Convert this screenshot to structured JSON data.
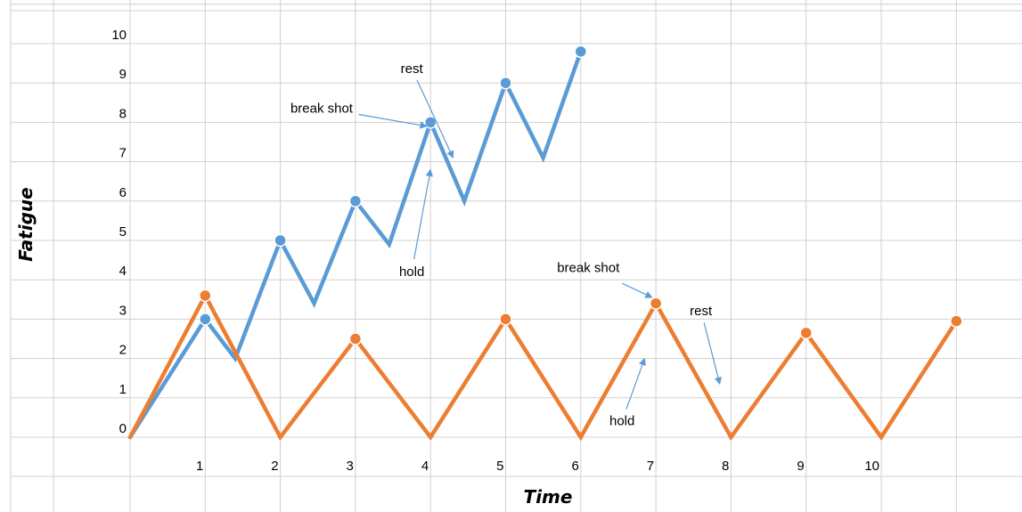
{
  "chart_data": {
    "type": "line",
    "title": "",
    "xlabel": "Time",
    "ylabel": "Fatigue",
    "x_ticks": [
      "1",
      "2",
      "3",
      "4",
      "5",
      "6",
      "7",
      "8",
      "9",
      "10"
    ],
    "y_ticks": [
      "0",
      "1",
      "2",
      "3",
      "4",
      "5",
      "6",
      "7",
      "8",
      "9",
      "10"
    ],
    "xlim": [
      0,
      11
    ],
    "ylim": [
      0,
      10
    ],
    "grid": true,
    "legend": "none",
    "colors": {
      "series_blue": "#5B9BD5",
      "series_orange": "#ED7D31",
      "grid": "#d0d0d0",
      "arrow": "#5B9BD5"
    },
    "series": [
      {
        "points": [
          {
            "x": 0,
            "y": 0
          },
          {
            "x": 1,
            "y": 3.0
          },
          {
            "x": 1.4,
            "y": 2.0
          },
          {
            "x": 2,
            "y": 5.0
          },
          {
            "x": 2.45,
            "y": 3.4
          },
          {
            "x": 3,
            "y": 6.0
          },
          {
            "x": 3.45,
            "y": 4.9
          },
          {
            "x": 4,
            "y": 8.0
          },
          {
            "x": 4.45,
            "y": 6.0
          },
          {
            "x": 5,
            "y": 9.0
          },
          {
            "x": 5.5,
            "y": 7.1
          },
          {
            "x": 6,
            "y": 9.8
          }
        ],
        "markers": [
          1,
          3,
          5,
          7,
          9,
          11
        ]
      },
      {
        "points": [
          {
            "x": 0,
            "y": 0
          },
          {
            "x": 1,
            "y": 3.6
          },
          {
            "x": 2,
            "y": 0
          },
          {
            "x": 3,
            "y": 2.5
          },
          {
            "x": 4,
            "y": 0
          },
          {
            "x": 5,
            "y": 3.0
          },
          {
            "x": 6,
            "y": 0
          },
          {
            "x": 7,
            "y": 3.4
          },
          {
            "x": 8,
            "y": 0
          },
          {
            "x": 9,
            "y": 2.65
          },
          {
            "x": 10,
            "y": 0
          },
          {
            "x": 11,
            "y": 2.95
          }
        ],
        "markers": [
          1,
          3,
          5,
          7,
          9,
          11
        ]
      }
    ],
    "annotations": [
      {
        "text": "rest",
        "x": 3.75,
        "y": 9.25,
        "arrow_to": {
          "x": 4.3,
          "y": 7.1
        }
      },
      {
        "text": "break shot",
        "x": 2.55,
        "y": 8.25,
        "arrow_to": {
          "x": 3.95,
          "y": 7.9
        }
      },
      {
        "text": "hold",
        "x": 3.75,
        "y": 4.1,
        "arrow_to": {
          "x": 4.0,
          "y": 6.8
        }
      },
      {
        "text": "break shot",
        "x": 6.1,
        "y": 4.2,
        "arrow_to": {
          "x": 6.95,
          "y": 3.55
        }
      },
      {
        "text": "rest",
        "x": 7.6,
        "y": 3.1,
        "arrow_to": {
          "x": 7.85,
          "y": 1.35
        }
      },
      {
        "text": "hold",
        "x": 6.55,
        "y": 0.3,
        "arrow_to": {
          "x": 6.85,
          "y": 2.0
        }
      }
    ]
  }
}
